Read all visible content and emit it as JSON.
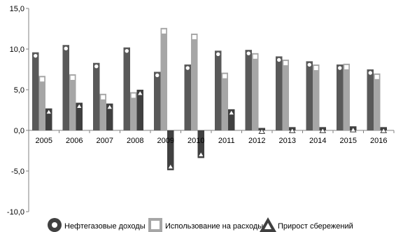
{
  "chart_data": {
    "type": "bar",
    "categories": [
      "2005",
      "2006",
      "2007",
      "2008",
      "2009",
      "2010",
      "2011",
      "2012",
      "2013",
      "2014",
      "2015",
      "2016"
    ],
    "series": [
      {
        "name": "Нефтегазовые доходы",
        "marker": "circle",
        "color": "#595959",
        "values": [
          9.6,
          10.5,
          8.3,
          10.2,
          7.2,
          8.1,
          9.8,
          9.9,
          9.1,
          8.5,
          8.1,
          7.5
        ]
      },
      {
        "name": "Использование на расходы",
        "marker": "square",
        "color": "#a6a6a6",
        "values": [
          6.7,
          6.9,
          4.5,
          4.7,
          12.6,
          11.9,
          7.1,
          9.5,
          8.7,
          8.1,
          8.2,
          7.0
        ]
      },
      {
        "name": "Прирост сбережений",
        "marker": "triangle",
        "color": "#404040",
        "values": [
          2.7,
          3.4,
          3.3,
          5.0,
          -4.9,
          -3.4,
          2.6,
          0.3,
          0.4,
          0.4,
          0.5,
          0.4
        ]
      }
    ],
    "ylim": [
      -10,
      15
    ],
    "yticks": [
      "15,0",
      "10,0",
      "5,0",
      "0,0",
      "-5,0",
      "-10,0"
    ],
    "ytick_values": [
      15,
      10,
      5,
      0,
      -5,
      -10
    ],
    "grid": false,
    "legend": "bottom"
  }
}
